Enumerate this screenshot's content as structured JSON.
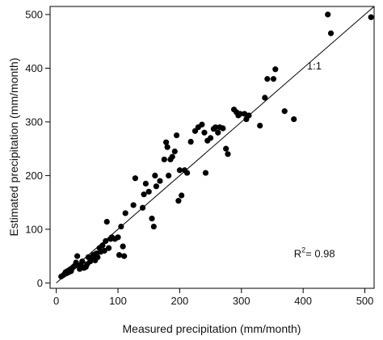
{
  "chart_data": {
    "type": "scatter",
    "title": "",
    "xlabel": "Measured precipitation (mm/month)",
    "ylabel": "Estimated precipitation (mm/month)",
    "xlim": [
      -10,
      515
    ],
    "ylim": [
      -10,
      515
    ],
    "xticks": [
      0,
      100,
      200,
      300,
      400,
      500
    ],
    "yticks": [
      0,
      100,
      200,
      300,
      400,
      500
    ],
    "xtick_labels": [
      "0",
      "100",
      "200",
      "300",
      "400",
      "500"
    ],
    "ytick_labels": [
      "0",
      "100",
      "200",
      "300",
      "400",
      "500"
    ],
    "grid": false,
    "reference_line": {
      "label": "1:1",
      "from": [
        0,
        0
      ],
      "to": [
        515,
        515
      ],
      "label_at": [
        418,
        398
      ]
    },
    "annotation": {
      "prefix": "R",
      "superscript": "2",
      "text": "= 0.98",
      "at": [
        385,
        48
      ]
    },
    "point_color": "#000000",
    "points": [
      [
        8,
        12
      ],
      [
        12,
        15
      ],
      [
        14,
        17
      ],
      [
        15,
        20
      ],
      [
        17,
        18
      ],
      [
        18,
        22
      ],
      [
        20,
        20
      ],
      [
        22,
        25
      ],
      [
        24,
        22
      ],
      [
        26,
        28
      ],
      [
        28,
        30
      ],
      [
        30,
        32
      ],
      [
        32,
        38
      ],
      [
        34,
        50
      ],
      [
        36,
        33
      ],
      [
        38,
        26
      ],
      [
        40,
        33
      ],
      [
        42,
        40
      ],
      [
        45,
        28
      ],
      [
        48,
        30
      ],
      [
        50,
        35
      ],
      [
        52,
        48
      ],
      [
        55,
        40
      ],
      [
        58,
        45
      ],
      [
        60,
        52
      ],
      [
        63,
        42
      ],
      [
        65,
        55
      ],
      [
        67,
        48
      ],
      [
        70,
        65
      ],
      [
        72,
        58
      ],
      [
        75,
        70
      ],
      [
        78,
        60
      ],
      [
        80,
        78
      ],
      [
        82,
        114
      ],
      [
        85,
        65
      ],
      [
        88,
        82
      ],
      [
        90,
        85
      ],
      [
        95,
        82
      ],
      [
        100,
        85
      ],
      [
        102,
        52
      ],
      [
        105,
        105
      ],
      [
        108,
        68
      ],
      [
        110,
        50
      ],
      [
        112,
        130
      ],
      [
        125,
        145
      ],
      [
        128,
        195
      ],
      [
        140,
        140
      ],
      [
        142,
        165
      ],
      [
        145,
        185
      ],
      [
        150,
        170
      ],
      [
        155,
        120
      ],
      [
        158,
        105
      ],
      [
        160,
        200
      ],
      [
        162,
        180
      ],
      [
        168,
        190
      ],
      [
        175,
        230
      ],
      [
        178,
        262
      ],
      [
        180,
        253
      ],
      [
        182,
        200
      ],
      [
        185,
        230
      ],
      [
        188,
        235
      ],
      [
        192,
        245
      ],
      [
        195,
        275
      ],
      [
        198,
        153
      ],
      [
        200,
        210
      ],
      [
        203,
        163
      ],
      [
        208,
        210
      ],
      [
        212,
        205
      ],
      [
        218,
        263
      ],
      [
        225,
        283
      ],
      [
        230,
        290
      ],
      [
        236,
        295
      ],
      [
        240,
        280
      ],
      [
        242,
        205
      ],
      [
        245,
        265
      ],
      [
        250,
        270
      ],
      [
        255,
        287
      ],
      [
        258,
        290
      ],
      [
        262,
        280
      ],
      [
        265,
        290
      ],
      [
        270,
        288
      ],
      [
        275,
        250
      ],
      [
        278,
        240
      ],
      [
        288,
        323
      ],
      [
        292,
        318
      ],
      [
        295,
        312
      ],
      [
        298,
        315
      ],
      [
        305,
        315
      ],
      [
        308,
        305
      ],
      [
        312,
        312
      ],
      [
        330,
        293
      ],
      [
        338,
        345
      ],
      [
        342,
        380
      ],
      [
        352,
        380
      ],
      [
        355,
        398
      ],
      [
        370,
        320
      ],
      [
        385,
        305
      ],
      [
        440,
        500
      ],
      [
        445,
        465
      ],
      [
        510,
        495
      ]
    ]
  }
}
